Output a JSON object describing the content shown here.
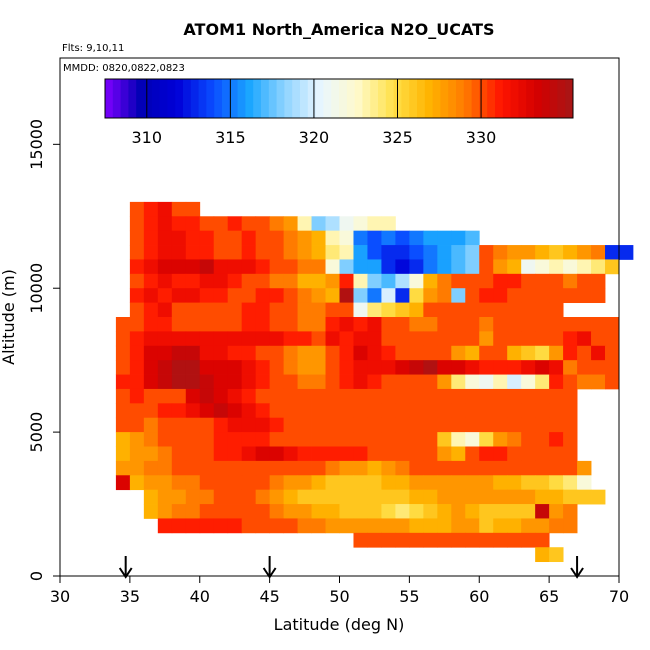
{
  "chart_data": {
    "type": "heatmap",
    "title": "ATOM1 North_America N2O_UCATS",
    "subtitle_flights": "Flts: 9,10,11",
    "subtitle_dates": "MMDD: 0820,0822,0823",
    "xlabel": "Latitude (deg N)",
    "ylabel": "Altitude (m)",
    "xlim": [
      30,
      70
    ],
    "ylim": [
      0,
      18000
    ],
    "x_ticks": [
      "30",
      "35",
      "40",
      "45",
      "50",
      "55",
      "60",
      "65",
      "70"
    ],
    "y_ticks": [
      "0",
      "5000",
      "10000",
      "15000"
    ],
    "colorbar": {
      "range": [
        307.5,
        335.5
      ],
      "ticks": [
        "310",
        "315",
        "320",
        "325",
        "330"
      ],
      "tick_values": [
        310,
        315,
        320,
        325,
        330
      ],
      "colors": [
        "#7f00ff",
        "#0000b4",
        "#0000d8",
        "#0a4cff",
        "#1aa6ff",
        "#8fd4ff",
        "#e9f6ff",
        "#fffacc",
        "#ffe14a",
        "#ffb400",
        "#ff7a00",
        "#ff1400",
        "#d40000",
        "#a61616"
      ]
    },
    "grid": false,
    "legend": "colorbar at top",
    "profile_markers_lat": [
      34.7,
      45.0,
      67.0
    ],
    "cell_height_m": 500,
    "cell_width_deg": 1.0,
    "rows": [
      {
        "alt": 12500,
        "lat_start": 35.0,
        "values": [
          330,
          331,
          332,
          330,
          330
        ]
      },
      {
        "alt": 12000,
        "lat_start": 35.0,
        "values": [
          330,
          331,
          332,
          331,
          331,
          330,
          330,
          331,
          330,
          330,
          329,
          328,
          323,
          318,
          319,
          321,
          322,
          323,
          323
        ]
      },
      {
        "alt": 11500,
        "lat_start": 35.0,
        "values": [
          330,
          331,
          332,
          332,
          331,
          331,
          330,
          330,
          331,
          330,
          330,
          329,
          328,
          327,
          323,
          322,
          315,
          314,
          315,
          314,
          315,
          316,
          316,
          316,
          317
        ]
      },
      {
        "alt": 11000,
        "lat_start": 35.0,
        "values": [
          330,
          331,
          332,
          332,
          331,
          331,
          330,
          330,
          331,
          330,
          330,
          329,
          328,
          327,
          324,
          323,
          316,
          314,
          313,
          313,
          314,
          315,
          316,
          317,
          318,
          330,
          329,
          328,
          328,
          327,
          326,
          327,
          328,
          329,
          313,
          313
        ]
      },
      {
        "alt": 10500,
        "lat_start": 35.0,
        "values": [
          331,
          332,
          333,
          333,
          333,
          334,
          332,
          332,
          332,
          331,
          330,
          330,
          329,
          329,
          322,
          318,
          316,
          316,
          313,
          312,
          313,
          315,
          316,
          317,
          318,
          330,
          328,
          327,
          321,
          322,
          323,
          322,
          323,
          324,
          326
        ]
      },
      {
        "alt": 10000,
        "lat_start": 35.0,
        "values": [
          330,
          331,
          332,
          331,
          331,
          332,
          332,
          331,
          330,
          330,
          329,
          329,
          327,
          327,
          328,
          331,
          323,
          318,
          317,
          319,
          322,
          327,
          329,
          330,
          330,
          330,
          331,
          331,
          330,
          330,
          330,
          329,
          330,
          330
        ]
      },
      {
        "alt": 9500,
        "lat_start": 35.0,
        "values": [
          331,
          332,
          331,
          332,
          332,
          331,
          331,
          330,
          330,
          331,
          331,
          330,
          329,
          328,
          327,
          335,
          318,
          315,
          320,
          313,
          325,
          328,
          329,
          318,
          330,
          331,
          331,
          330,
          330,
          330,
          330,
          330,
          330,
          330
        ]
      },
      {
        "alt": 9000,
        "lat_start": 35.0,
        "values": [
          330,
          331,
          332,
          330,
          330,
          330,
          330,
          330,
          331,
          331,
          330,
          330,
          329,
          329,
          330,
          330,
          321,
          324,
          325,
          326,
          327,
          330,
          330,
          330,
          330,
          330,
          330,
          330,
          330,
          330,
          330
        ]
      },
      {
        "alt": 8500,
        "lat_start": 34.0,
        "values": [
          330,
          330,
          331,
          331,
          330,
          330,
          330,
          330,
          330,
          331,
          331,
          330,
          330,
          329,
          329,
          331,
          332,
          331,
          332,
          330,
          330,
          329,
          329,
          330,
          330,
          330,
          329,
          330,
          330,
          330,
          330,
          330,
          330,
          330,
          330,
          330
        ]
      },
      {
        "alt": 8000,
        "lat_start": 34.0,
        "values": [
          330,
          331,
          332,
          332,
          332,
          332,
          332,
          332,
          332,
          332,
          332,
          332,
          331,
          331,
          330,
          332,
          331,
          332,
          332,
          330,
          330,
          330,
          330,
          330,
          330,
          330,
          328,
          330,
          330,
          330,
          330,
          330,
          331,
          332,
          330,
          330
        ]
      },
      {
        "alt": 7500,
        "lat_start": 34.0,
        "values": [
          330,
          331,
          333,
          333,
          334,
          334,
          332,
          332,
          331,
          331,
          330,
          330,
          329,
          328,
          328,
          330,
          331,
          333,
          332,
          331,
          330,
          330,
          330,
          330,
          328,
          327,
          330,
          330,
          327,
          326,
          325,
          328,
          331,
          330,
          332,
          330
        ]
      },
      {
        "alt": 7000,
        "lat_start": 34.0,
        "values": [
          330,
          331,
          333,
          334,
          335,
          335,
          333,
          333,
          333,
          332,
          331,
          330,
          329,
          328,
          328,
          330,
          331,
          332,
          332,
          332,
          333,
          334,
          335,
          333,
          333,
          332,
          331,
          331,
          331,
          332,
          333,
          332,
          329,
          330,
          330,
          330
        ]
      },
      {
        "alt": 6500,
        "lat_start": 34.0,
        "values": [
          331,
          331,
          333,
          334,
          335,
          335,
          334,
          333,
          333,
          332,
          331,
          330,
          330,
          329,
          329,
          330,
          331,
          332,
          331,
          330,
          330,
          330,
          330,
          328,
          324,
          322,
          321,
          323,
          320,
          322,
          324,
          331,
          330,
          329,
          329,
          330
        ]
      },
      {
        "alt": 6000,
        "lat_start": 34.0,
        "values": [
          330,
          331,
          330,
          330,
          330,
          333,
          334,
          333,
          332,
          331,
          330,
          330,
          330,
          330,
          330,
          330,
          330,
          330,
          330,
          330,
          330,
          330,
          330,
          330,
          330,
          330,
          330,
          330,
          330,
          330,
          330,
          330,
          330
        ]
      },
      {
        "alt": 5500,
        "lat_start": 34.0,
        "values": [
          330,
          330,
          330,
          331,
          331,
          332,
          333,
          334,
          333,
          332,
          331,
          330,
          330,
          330,
          330,
          330,
          330,
          330,
          330,
          330,
          330,
          330,
          330,
          330,
          330,
          330,
          330,
          330,
          330,
          330,
          330,
          330,
          330
        ]
      },
      {
        "alt": 5000,
        "lat_start": 34.0,
        "values": [
          330,
          330,
          329,
          330,
          330,
          330,
          330,
          331,
          332,
          332,
          332,
          331,
          330,
          330,
          330,
          330,
          330,
          330,
          330,
          330,
          330,
          330,
          330,
          330,
          330,
          330,
          330,
          330,
          330,
          330,
          330,
          330,
          330
        ]
      },
      {
        "alt": 4500,
        "lat_start": 34.0,
        "values": [
          327,
          328,
          329,
          330,
          330,
          330,
          330,
          331,
          331,
          331,
          331,
          330,
          330,
          330,
          330,
          330,
          330,
          330,
          330,
          330,
          330,
          330,
          330,
          326,
          323,
          322,
          325,
          328,
          329,
          330,
          330,
          331,
          330
        ]
      },
      {
        "alt": 4000,
        "lat_start": 34.0,
        "values": [
          327,
          328,
          328,
          329,
          330,
          330,
          330,
          331,
          331,
          332,
          333,
          333,
          332,
          331,
          331,
          331,
          331,
          331,
          330,
          330,
          330,
          330,
          330,
          328,
          327,
          330,
          331,
          331,
          330,
          330,
          330,
          330,
          330
        ]
      },
      {
        "alt": 3500,
        "lat_start": 34.0,
        "values": [
          328,
          328,
          329,
          329,
          330,
          330,
          330,
          330,
          330,
          330,
          330,
          330,
          330,
          330,
          330,
          329,
          328,
          328,
          327,
          328,
          329,
          330,
          330,
          330,
          330,
          330,
          330,
          330,
          330,
          330,
          330,
          330,
          330,
          328
        ]
      },
      {
        "alt": 3000,
        "lat_start": 34.0,
        "values": [
          333,
          327,
          328,
          328,
          329,
          329,
          330,
          330,
          330,
          330,
          330,
          329,
          328,
          328,
          327,
          326,
          326,
          326,
          326,
          327,
          327,
          328,
          328,
          328,
          328,
          328,
          328,
          327,
          327,
          326,
          326,
          325,
          324,
          322
        ]
      },
      {
        "alt": 2500,
        "lat_start": 36.0,
        "values": [
          327,
          328,
          328,
          329,
          329,
          330,
          330,
          330,
          329,
          328,
          327,
          326,
          326,
          326,
          326,
          326,
          326,
          326,
          326,
          327,
          327,
          328,
          328,
          328,
          328,
          328,
          328,
          328,
          327,
          327,
          326,
          326,
          326
        ]
      },
      {
        "alt": 2000,
        "lat_start": 36.0,
        "values": [
          327,
          328,
          329,
          329,
          330,
          330,
          330,
          330,
          330,
          329,
          328,
          328,
          327,
          327,
          326,
          326,
          326,
          325,
          324,
          325,
          326,
          327,
          328,
          327,
          326,
          326,
          326,
          326,
          334,
          328,
          329
        ]
      },
      {
        "alt": 1500,
        "lat_start": 37.0,
        "values": [
          331,
          331,
          331,
          331,
          331,
          331,
          330,
          330,
          330,
          330,
          329,
          329,
          328,
          328,
          328,
          328,
          328,
          328,
          327,
          327,
          327,
          328,
          328,
          326,
          327,
          327,
          328,
          328,
          329,
          329
        ]
      },
      {
        "alt": 1000,
        "lat_start": 51.0,
        "values": [
          330,
          330,
          330,
          330,
          330,
          330,
          330,
          330,
          330,
          330,
          330,
          330,
          330,
          330
        ]
      },
      {
        "alt": 500,
        "lat_start": 64.0,
        "values": [
          327,
          326
        ]
      }
    ]
  }
}
